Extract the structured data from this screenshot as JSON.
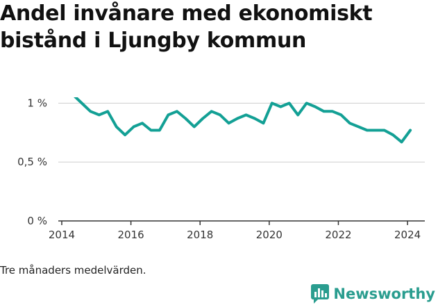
{
  "title": "Andel invånare med ekonomiskt bistånd i Ljungby kommun",
  "footnote": "Tre månaders medelvärden.",
  "brand": {
    "name": "Newsworthy",
    "icon": "bar-chart-icon"
  },
  "colors": {
    "line": "#13a095",
    "grid": "#cfcfcf",
    "axis": "#333333",
    "brand": "#2a9d8f"
  },
  "chart_data": {
    "type": "line",
    "title": "Andel invånare med ekonomiskt bistånd i Ljungby kommun",
    "xlabel": "",
    "ylabel": "",
    "xlim": [
      2013.9,
      2024.5
    ],
    "ylim": [
      0,
      1.05
    ],
    "x_ticks": [
      2014,
      2016,
      2018,
      2020,
      2022,
      2024
    ],
    "x_tick_labels": [
      "2014",
      "2016",
      "2018",
      "2020",
      "2022",
      "2024"
    ],
    "y_ticks": [
      0,
      0.5,
      1
    ],
    "y_tick_labels": [
      "0 %",
      "0,5 %",
      "1 %"
    ],
    "grid": "horizontal",
    "legend": "none",
    "series": [
      {
        "x": [
          2014.33,
          2014.58,
          2014.83,
          2015.08,
          2015.33,
          2015.58,
          2015.83,
          2016.08,
          2016.33,
          2016.58,
          2016.83,
          2017.08,
          2017.33,
          2017.58,
          2017.83,
          2018.08,
          2018.33,
          2018.58,
          2018.83,
          2019.08,
          2019.33,
          2019.58,
          2019.83,
          2020.08,
          2020.33,
          2020.58,
          2020.83,
          2021.08,
          2021.33,
          2021.58,
          2021.83,
          2022.08,
          2022.33,
          2022.58,
          2022.83,
          2023.08,
          2023.33,
          2023.58,
          2023.83,
          2024.08
        ],
        "y": [
          1.07,
          1.0,
          0.93,
          0.9,
          0.93,
          0.8,
          0.73,
          0.8,
          0.83,
          0.77,
          0.77,
          0.9,
          0.93,
          0.87,
          0.8,
          0.87,
          0.93,
          0.9,
          0.83,
          0.87,
          0.9,
          0.87,
          0.83,
          1.0,
          0.97,
          1.0,
          0.9,
          1.0,
          0.97,
          0.93,
          0.93,
          0.9,
          0.83,
          0.8,
          0.77,
          0.77,
          0.77,
          0.73,
          0.67,
          0.77
        ]
      }
    ]
  }
}
